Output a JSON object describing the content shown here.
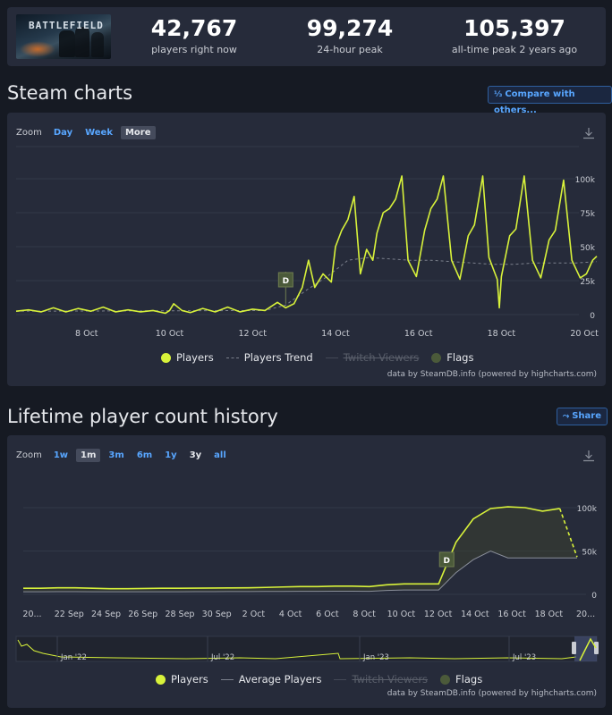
{
  "header": {
    "game_thumb_text": "BATTLEFIELD",
    "stats": [
      {
        "value": "42,767",
        "label": "players right now"
      },
      {
        "value": "99,274",
        "label": "24-hour peak"
      },
      {
        "value": "105,397",
        "label": "all-time peak 2 years ago"
      }
    ]
  },
  "steam_charts": {
    "title": "Steam charts",
    "compare_button": "Compare with others...",
    "zoom_label": "Zoom",
    "zoom_options": [
      "Day",
      "Week",
      "More"
    ],
    "zoom_selected": "More",
    "legend": {
      "players": "Players",
      "trend": "Players Trend",
      "twitch": "Twitch Viewers",
      "flags": "Flags"
    },
    "credit": "data by SteamDB.info (powered by highcharts.com)",
    "flag_label": "D",
    "chart_data": {
      "type": "line",
      "x_tick_labels": [
        "8 Oct",
        "10 Oct",
        "12 Oct",
        "14 Oct",
        "16 Oct",
        "18 Oct",
        "20 Oct"
      ],
      "y_tick_labels": [
        "0",
        "25k",
        "50k",
        "75k",
        "100k"
      ],
      "ylim": [
        0,
        100000
      ],
      "x_range_days": [
        6.3,
        20.3
      ],
      "series": [
        {
          "name": "Players",
          "points": [
            [
              6.3,
              2500
            ],
            [
              6.6,
              3500
            ],
            [
              6.9,
              2000
            ],
            [
              7.2,
              5000
            ],
            [
              7.5,
              2000
            ],
            [
              7.8,
              4500
            ],
            [
              8.1,
              2500
            ],
            [
              8.4,
              5500
            ],
            [
              8.7,
              2000
            ],
            [
              9.0,
              3500
            ],
            [
              9.3,
              2000
            ],
            [
              9.6,
              3000
            ],
            [
              9.9,
              1000
            ],
            [
              10.0,
              3000
            ],
            [
              10.1,
              8000
            ],
            [
              10.3,
              3000
            ],
            [
              10.5,
              1500
            ],
            [
              10.8,
              4500
            ],
            [
              11.1,
              2000
            ],
            [
              11.4,
              5500
            ],
            [
              11.7,
              2000
            ],
            [
              12.0,
              4000
            ],
            [
              12.3,
              3000
            ],
            [
              12.6,
              9000
            ],
            [
              12.8,
              5000
            ],
            [
              13.0,
              8000
            ],
            [
              13.2,
              20000
            ],
            [
              13.35,
              40000
            ],
            [
              13.5,
              20000
            ],
            [
              13.7,
              30000
            ],
            [
              13.9,
              24000
            ],
            [
              14.0,
              50000
            ],
            [
              14.15,
              62000
            ],
            [
              14.3,
              70000
            ],
            [
              14.45,
              87000
            ],
            [
              14.6,
              30000
            ],
            [
              14.75,
              48000
            ],
            [
              14.9,
              40000
            ],
            [
              15.0,
              60000
            ],
            [
              15.15,
              75000
            ],
            [
              15.3,
              78000
            ],
            [
              15.45,
              85000
            ],
            [
              15.6,
              102000
            ],
            [
              15.75,
              40000
            ],
            [
              15.95,
              28000
            ],
            [
              16.15,
              62000
            ],
            [
              16.3,
              78000
            ],
            [
              16.45,
              85000
            ],
            [
              16.6,
              102000
            ],
            [
              16.8,
              40000
            ],
            [
              17.0,
              26000
            ],
            [
              17.2,
              58000
            ],
            [
              17.35,
              66000
            ],
            [
              17.55,
              102000
            ],
            [
              17.7,
              42000
            ],
            [
              17.9,
              26000
            ],
            [
              17.95,
              5000
            ],
            [
              18.0,
              28000
            ],
            [
              18.2,
              58000
            ],
            [
              18.35,
              63000
            ],
            [
              18.55,
              102000
            ],
            [
              18.75,
              40000
            ],
            [
              18.95,
              27000
            ],
            [
              19.15,
              55000
            ],
            [
              19.3,
              62000
            ],
            [
              19.5,
              99000
            ],
            [
              19.7,
              40000
            ],
            [
              19.9,
              27000
            ],
            [
              20.05,
              30000
            ],
            [
              20.2,
              40000
            ],
            [
              20.3,
              43000
            ]
          ]
        },
        {
          "name": "Players Trend",
          "points": [
            [
              6.3,
              2500
            ],
            [
              12.3,
              3000
            ],
            [
              12.8,
              7000
            ],
            [
              13.3,
              18000
            ],
            [
              13.8,
              28000
            ],
            [
              14.3,
              40000
            ],
            [
              14.8,
              42000
            ],
            [
              15.3,
              41000
            ],
            [
              15.8,
              40000
            ],
            [
              16.3,
              40000
            ],
            [
              16.8,
              39000
            ],
            [
              17.3,
              38000
            ],
            [
              17.8,
              37000
            ],
            [
              18.3,
              37000
            ],
            [
              18.8,
              38000
            ],
            [
              19.3,
              38000
            ],
            [
              19.8,
              38000
            ],
            [
              20.3,
              39000
            ]
          ]
        }
      ],
      "flags": [
        {
          "x": 12.8,
          "label": "D"
        }
      ]
    }
  },
  "lifetime": {
    "title": "Lifetime player count history",
    "share_button": "Share",
    "zoom_label": "Zoom",
    "zoom_options": [
      "1w",
      "1m",
      "3m",
      "6m",
      "1y",
      "3y",
      "all"
    ],
    "zoom_selected": "1m",
    "legend": {
      "players": "Players",
      "avg": "Average Players",
      "twitch": "Twitch Viewers",
      "flags": "Flags"
    },
    "credit": "data by SteamDB.info (powered by highcharts.com)",
    "flag_label": "D",
    "chart_data": {
      "type": "area",
      "x_tick_labels": [
        "20...",
        "22 Sep",
        "24 Sep",
        "26 Sep",
        "28 Sep",
        "30 Sep",
        "2 Oct",
        "4 Oct",
        "6 Oct",
        "8 Oct",
        "10 Oct",
        "12 Oct",
        "14 Oct",
        "16 Oct",
        "18 Oct",
        "20..."
      ],
      "y_tick_labels": [
        "0",
        "50k",
        "100k"
      ],
      "ylim": [
        0,
        100000
      ],
      "series": [
        {
          "name": "Players",
          "values": [
            7000,
            7000,
            7500,
            7500,
            7000,
            6500,
            6500,
            6800,
            7000,
            7000,
            7200,
            7300,
            7400,
            7500,
            8000,
            8500,
            9000,
            9000,
            9500,
            9500,
            9000,
            11000,
            12000,
            12000,
            12000,
            60000,
            87000,
            99000,
            101000,
            100000,
            96000,
            99000,
            43000
          ]
        },
        {
          "name": "Average Players",
          "values": [
            3000,
            3000,
            3100,
            3100,
            3000,
            2900,
            2900,
            3000,
            3000,
            3000,
            3100,
            3100,
            3200,
            3200,
            3300,
            3400,
            3500,
            3500,
            3600,
            3600,
            3500,
            4500,
            5000,
            5000,
            5000,
            25000,
            40000,
            50000,
            42000,
            42000,
            42000,
            42000,
            42000
          ]
        }
      ],
      "flags": [
        {
          "label": "D"
        }
      ],
      "navigator_labels": [
        "Jan '22",
        "Jul '22",
        "Jan '23",
        "Jul '23"
      ]
    }
  }
}
